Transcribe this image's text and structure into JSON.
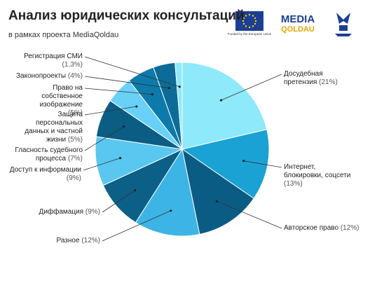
{
  "chart_data": {
    "type": "pie",
    "title": "Анализ юридических консультаций",
    "subtitle": "в рамках проекта MediaQoldau",
    "categories": [
      "Досудебная претензия",
      "Интернет, блокировки, соцсети",
      "Авторское право",
      "Разное",
      "Диффамация",
      "Доступ к информации",
      "Гласность судебного процесса",
      "Защита персональных данных и частной жизни",
      "Право на собственное изображение",
      "Законопроекты",
      "Регистрация СМИ"
    ],
    "values": [
      21,
      13,
      12,
      12,
      9,
      9,
      7,
      5,
      5,
      4,
      1.3
    ],
    "value_labels": [
      "(21%)",
      "(13%)",
      "(12%)",
      "(12%)",
      "(9%)",
      "(9%)",
      "(7%)",
      "(5%)",
      "(5%)",
      "(4%)",
      "(1.3%)"
    ],
    "colors": [
      "#8ee9fb",
      "#1ba2d4",
      "#0b5c84",
      "#3cb4e6",
      "#0c5f86",
      "#59c7f0",
      "#0b5d84",
      "#69d1f7",
      "#0c7aab",
      "#0d6c97",
      "#8ee9fb"
    ]
  },
  "logos": {
    "eu": "Funded by the European Union",
    "media": "MEDIA",
    "qoldau": "QOLDAU"
  }
}
